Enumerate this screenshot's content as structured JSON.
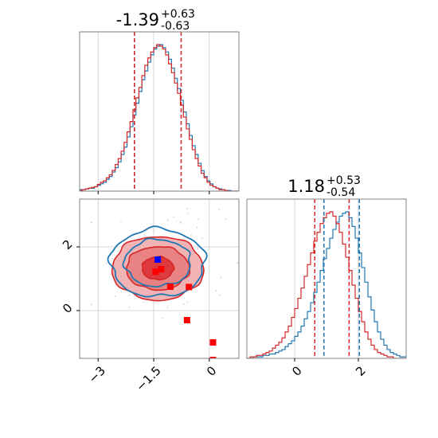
{
  "chart_data": [
    {
      "type": "histogram",
      "panel": "top-left",
      "title": "-1.39",
      "title_upper": "+0.63",
      "title_lower": "-0.63",
      "xlim": [
        -3.5,
        0.8
      ],
      "x_ticks": [
        -3.0,
        -1.5,
        0.0
      ],
      "grid": true,
      "quantile_lines": [
        {
          "x": -2.02,
          "color": "#1f77b4"
        },
        {
          "x": -2.02,
          "color": "#d62728"
        },
        {
          "x": -0.76,
          "color": "#d62728"
        }
      ],
      "series": [
        {
          "color": "#1f77b4",
          "bin_start": -3.5,
          "bin_width": 0.08,
          "counts": [
            0.01,
            0.01,
            0.015,
            0.02,
            0.02,
            0.03,
            0.04,
            0.05,
            0.06,
            0.08,
            0.1,
            0.13,
            0.16,
            0.2,
            0.25,
            0.3,
            0.37,
            0.44,
            0.52,
            0.6,
            0.68,
            0.76,
            0.82,
            0.88,
            0.93,
            0.97,
            0.99,
            1.0,
            0.98,
            0.95,
            0.9,
            0.84,
            0.77,
            0.7,
            0.62,
            0.54,
            0.46,
            0.38,
            0.31,
            0.25,
            0.19,
            0.14,
            0.1,
            0.07,
            0.05,
            0.03,
            0.02,
            0.015,
            0.01,
            0.005,
            0.005,
            0.0,
            0.0,
            0.0
          ]
        },
        {
          "color": "#d62728",
          "bin_start": -3.5,
          "bin_width": 0.08,
          "counts": [
            0.005,
            0.01,
            0.015,
            0.02,
            0.025,
            0.03,
            0.045,
            0.06,
            0.07,
            0.09,
            0.11,
            0.14,
            0.18,
            0.22,
            0.27,
            0.33,
            0.4,
            0.47,
            0.55,
            0.63,
            0.7,
            0.78,
            0.85,
            0.9,
            0.94,
            0.97,
            0.99,
            0.98,
            0.96,
            0.92,
            0.86,
            0.8,
            0.73,
            0.66,
            0.58,
            0.5,
            0.42,
            0.35,
            0.28,
            0.22,
            0.17,
            0.12,
            0.09,
            0.06,
            0.04,
            0.03,
            0.02,
            0.01,
            0.01,
            0.005,
            0.0,
            0.0,
            0.0,
            0.0
          ]
        }
      ]
    },
    {
      "type": "contour",
      "panel": "bottom-left",
      "xlim": [
        -3.5,
        0.8
      ],
      "ylim": [
        -1.5,
        3.5
      ],
      "x_ticks": [
        -3.0,
        -1.5,
        0.0
      ],
      "y_ticks": [
        0,
        2
      ],
      "grid": true,
      "series": [
        {
          "color": "#1f77b4",
          "center": [
            -1.39,
            1.4
          ],
          "levels_sigma": [
            [
              0.55,
              0.5
            ],
            [
              1.05,
              0.9
            ],
            [
              1.5,
              1.3
            ]
          ]
        },
        {
          "color": "#d62728",
          "center": [
            -1.39,
            1.18
          ],
          "levels_sigma": [
            [
              0.5,
              0.45
            ],
            [
              1.0,
              0.85
            ],
            [
              1.45,
              1.25
            ]
          ]
        }
      ],
      "markers": [
        {
          "color": "#0000ff",
          "x": [
            -1.39
          ],
          "y": [
            1.6
          ]
        },
        {
          "color": "#ff0000",
          "x": [
            -1.3,
            -1.45,
            -1.05,
            -0.55,
            -0.6,
            0.1,
            0.1
          ],
          "y": [
            1.3,
            1.22,
            0.75,
            0.74,
            -0.3,
            -1.0,
            -1.55
          ]
        }
      ]
    },
    {
      "type": "histogram",
      "panel": "bottom-right",
      "title": "1.18",
      "title_upper": "+0.53",
      "title_lower": "-0.54",
      "xlim": [
        -1.5,
        3.5
      ],
      "x_ticks": [
        0,
        2
      ],
      "grid": true,
      "quantile_lines": [
        {
          "x": 0.63,
          "color": "#d62728"
        },
        {
          "x": 0.92,
          "color": "#1f77b4"
        },
        {
          "x": 1.71,
          "color": "#d62728"
        },
        {
          "x": 2.03,
          "color": "#1f77b4"
        }
      ],
      "series": [
        {
          "color": "#1f77b4",
          "bin_start": -1.5,
          "bin_width": 0.1,
          "counts": [
            0.0,
            0.0,
            0.01,
            0.01,
            0.01,
            0.02,
            0.02,
            0.03,
            0.03,
            0.04,
            0.05,
            0.06,
            0.08,
            0.1,
            0.12,
            0.15,
            0.18,
            0.22,
            0.27,
            0.32,
            0.38,
            0.45,
            0.52,
            0.6,
            0.68,
            0.75,
            0.82,
            0.88,
            0.93,
            0.97,
            0.99,
            1.0,
            0.96,
            0.9,
            0.82,
            0.72,
            0.62,
            0.52,
            0.42,
            0.33,
            0.25,
            0.18,
            0.13,
            0.09,
            0.06,
            0.04,
            0.03,
            0.02,
            0.01,
            0.01
          ]
        },
        {
          "color": "#d62728",
          "bin_start": -1.5,
          "bin_width": 0.1,
          "counts": [
            0.0,
            0.01,
            0.01,
            0.02,
            0.02,
            0.03,
            0.04,
            0.05,
            0.07,
            0.09,
            0.11,
            0.14,
            0.18,
            0.22,
            0.28,
            0.34,
            0.41,
            0.48,
            0.56,
            0.64,
            0.72,
            0.8,
            0.86,
            0.92,
            0.96,
            0.99,
            1.0,
            0.97,
            0.92,
            0.86,
            0.78,
            0.69,
            0.6,
            0.5,
            0.41,
            0.32,
            0.25,
            0.18,
            0.13,
            0.09,
            0.06,
            0.04,
            0.03,
            0.02,
            0.01,
            0.01,
            0.0,
            0.0,
            0.0,
            0.0
          ]
        }
      ]
    }
  ]
}
